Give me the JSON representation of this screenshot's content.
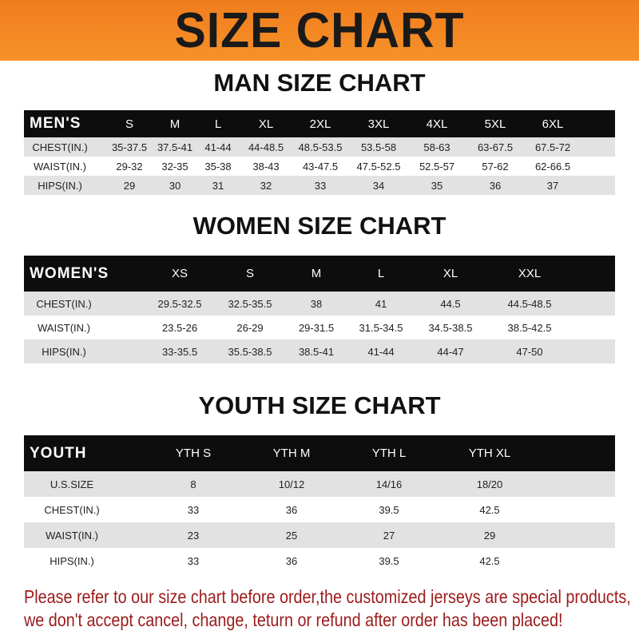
{
  "banner_title": "SIZE CHART",
  "men": {
    "title": "MAN SIZE CHART",
    "header": [
      "MEN'S",
      "S",
      "M",
      "L",
      "XL",
      "2XL",
      "3XL",
      "4XL",
      "5XL",
      "6XL"
    ],
    "rows": [
      [
        "CHEST(IN.)",
        "35-37.5",
        "37.5-41",
        "41-44",
        "44-48.5",
        "48.5-53.5",
        "53.5-58",
        "58-63",
        "63-67.5",
        "67.5-72"
      ],
      [
        "WAIST(IN.)",
        "29-32",
        "32-35",
        "35-38",
        "38-43",
        "43-47.5",
        "47.5-52.5",
        "52.5-57",
        "57-62",
        "62-66.5"
      ],
      [
        "HIPS(IN.)",
        "29",
        "30",
        "31",
        "32",
        "33",
        "34",
        "35",
        "36",
        "37"
      ]
    ]
  },
  "women": {
    "title": "WOMEN SIZE CHART",
    "header": [
      "WOMEN'S",
      "XS",
      "S",
      "M",
      "L",
      "XL",
      "XXL"
    ],
    "rows": [
      [
        "CHEST(IN.)",
        "29.5-32.5",
        "32.5-35.5",
        "38",
        "41",
        "44.5",
        "44.5-48.5"
      ],
      [
        "WAIST(IN.)",
        "23.5-26",
        "26-29",
        "29-31.5",
        "31.5-34.5",
        "34.5-38.5",
        "38.5-42.5"
      ],
      [
        "HIPS(IN.)",
        "33-35.5",
        "35.5-38.5",
        "38.5-41",
        "41-44",
        "44-47",
        "47-50"
      ]
    ]
  },
  "youth": {
    "title": "YOUTH SIZE CHART",
    "header": [
      "YOUTH",
      "YTH S",
      "YTH M",
      "YTH L",
      "YTH XL"
    ],
    "rows": [
      [
        "U.S.SIZE",
        "8",
        "10/12",
        "14/16",
        "18/20"
      ],
      [
        "CHEST(IN.)",
        "33",
        "36",
        "39.5",
        "42.5"
      ],
      [
        "WAIST(IN.)",
        "23",
        "25",
        "27",
        "29"
      ],
      [
        "HIPS(IN.)",
        "33",
        "36",
        "39.5",
        "42.5"
      ]
    ]
  },
  "notice": [
    "Please refer to our size chart before order,the customized jerseys are special products,",
    "we don't accept cancel, change, teturn or refund after order has been placed!"
  ],
  "colors": {
    "banner": "#f07d1c",
    "header_row": "#0d0d0d",
    "stripe": "#e2e2e2",
    "notice": "#9b1b1b"
  }
}
